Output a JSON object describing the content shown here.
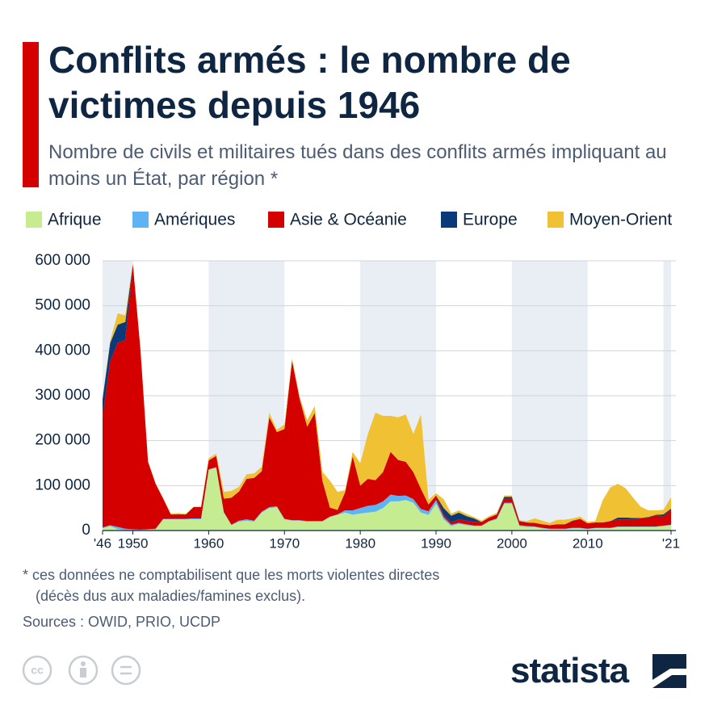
{
  "chart_data": {
    "type": "stacked_area",
    "title": "Conflits armés : le nombre de victimes depuis 1946",
    "subtitle": "Nombre de civils et militaires tués dans des conflits armés impliquant au moins un État, par région *",
    "notes": [
      "* ces données ne comptabilisent que les morts violentes directes",
      "(décès dus aux maladies/famines exclus)."
    ],
    "source": "Sources : OWID, PRIO, UCDP",
    "brand": "statista",
    "x": [
      1946,
      1947,
      1948,
      1949,
      1950,
      1951,
      1952,
      1953,
      1954,
      1955,
      1956,
      1957,
      1958,
      1959,
      1960,
      1961,
      1962,
      1963,
      1964,
      1965,
      1966,
      1967,
      1968,
      1969,
      1970,
      1971,
      1972,
      1973,
      1974,
      1975,
      1976,
      1977,
      1978,
      1979,
      1980,
      1981,
      1982,
      1983,
      1984,
      1985,
      1986,
      1987,
      1988,
      1989,
      1990,
      1991,
      1992,
      1993,
      1994,
      1995,
      1996,
      1997,
      1998,
      1999,
      2000,
      2001,
      2002,
      2003,
      2004,
      2005,
      2006,
      2007,
      2008,
      2009,
      2010,
      2011,
      2012,
      2013,
      2014,
      2015,
      2016,
      2017,
      2018,
      2019,
      2020,
      2021
    ],
    "series": [
      {
        "name": "Afrique",
        "color": "#c5ec91",
        "values": [
          5000,
          10000,
          3000,
          1000,
          1000,
          1000,
          2000,
          3000,
          25000,
          25000,
          25000,
          25000,
          25000,
          25000,
          135000,
          140000,
          40000,
          12000,
          20000,
          22000,
          20000,
          40000,
          50000,
          52000,
          25000,
          22000,
          22000,
          20000,
          20000,
          20000,
          30000,
          35000,
          40000,
          35000,
          38000,
          40000,
          42000,
          50000,
          65000,
          65000,
          68000,
          62000,
          40000,
          35000,
          60000,
          25000,
          10000,
          15000,
          12000,
          10000,
          10000,
          20000,
          25000,
          60000,
          60000,
          10000,
          8000,
          8000,
          5000,
          3000,
          3000,
          3000,
          5000,
          5000,
          3000,
          5000,
          5000,
          5000,
          8000,
          8000,
          8000,
          8000,
          8000,
          8000,
          10000,
          12000
        ]
      },
      {
        "name": "Amériques",
        "color": "#5eb3f2",
        "values": [
          2000,
          2000,
          5000,
          3000,
          2000,
          1000,
          1000,
          1000,
          1000,
          1000,
          1000,
          1000,
          2000,
          2000,
          1000,
          1000,
          1000,
          1000,
          2000,
          3000,
          2000,
          2000,
          2000,
          2000,
          1000,
          1000,
          1000,
          1000,
          1000,
          1000,
          1000,
          1000,
          5000,
          10000,
          12000,
          15000,
          15000,
          15000,
          15000,
          12000,
          10000,
          8000,
          8000,
          8000,
          8000,
          5000,
          3000,
          2000,
          2000,
          1000,
          1000,
          1000,
          2000,
          2000,
          2000,
          2000,
          2000,
          1000,
          1000,
          1000,
          1000,
          1000,
          1000,
          1000,
          1000,
          1000,
          1000,
          1000,
          1000,
          1000,
          1000,
          1000,
          1000,
          1000,
          1000,
          1000
        ]
      },
      {
        "name": "Asie & Océanie",
        "color": "#d40000",
        "values": [
          245000,
          365000,
          410000,
          420000,
          590000,
          400000,
          150000,
          100000,
          45000,
          10000,
          8000,
          10000,
          25000,
          25000,
          20000,
          25000,
          30000,
          60000,
          65000,
          90000,
          95000,
          90000,
          200000,
          165000,
          200000,
          355000,
          270000,
          210000,
          240000,
          90000,
          20000,
          10000,
          40000,
          120000,
          50000,
          60000,
          55000,
          65000,
          95000,
          80000,
          75000,
          60000,
          45000,
          15000,
          10000,
          5000,
          5000,
          8000,
          8000,
          8000,
          8000,
          8000,
          8000,
          8000,
          10000,
          8000,
          8000,
          8000,
          8000,
          8000,
          10000,
          10000,
          15000,
          20000,
          12000,
          12000,
          12000,
          15000,
          15000,
          15000,
          15000,
          18000,
          20000,
          25000,
          20000,
          35000
        ]
      },
      {
        "name": "Europe",
        "color": "#0b3a7a",
        "values": [
          40000,
          40000,
          40000,
          40000,
          0,
          0,
          0,
          0,
          0,
          0,
          2000,
          0,
          0,
          0,
          0,
          0,
          0,
          0,
          0,
          0,
          0,
          0,
          0,
          0,
          0,
          0,
          0,
          0,
          1000,
          0,
          0,
          0,
          0,
          0,
          0,
          0,
          0,
          0,
          0,
          0,
          0,
          0,
          0,
          0,
          0,
          15000,
          15000,
          15000,
          10000,
          8000,
          0,
          0,
          1000,
          5000,
          3000,
          1000,
          0,
          0,
          0,
          0,
          0,
          0,
          1000,
          0,
          0,
          0,
          0,
          0,
          5000,
          5000,
          4000,
          1000,
          1000,
          1000,
          5000,
          1000
        ]
      },
      {
        "name": "Moyen-Orient",
        "color": "#f0c132",
        "values": [
          0,
          5000,
          25000,
          15000,
          2000,
          1000,
          1000,
          1000,
          1000,
          2000,
          3000,
          1000,
          1000,
          1000,
          5000,
          5000,
          15000,
          15000,
          10000,
          10000,
          10000,
          10000,
          10000,
          5000,
          10000,
          5000,
          5000,
          15000,
          15000,
          20000,
          60000,
          40000,
          5000,
          10000,
          50000,
          100000,
          150000,
          125000,
          80000,
          95000,
          105000,
          85000,
          165000,
          10000,
          5000,
          20000,
          5000,
          5000,
          5000,
          3000,
          3000,
          3000,
          3000,
          3000,
          3000,
          2000,
          3000,
          10000,
          8000,
          5000,
          10000,
          10000,
          5000,
          5000,
          3000,
          3000,
          50000,
          75000,
          75000,
          65000,
          45000,
          25000,
          15000,
          10000,
          10000,
          25000
        ]
      }
    ],
    "xlim": [
      1946,
      2021
    ],
    "xticks": [
      {
        "value": 1946,
        "label": "'46"
      },
      1950,
      1960,
      1970,
      1980,
      1990,
      2000,
      2010,
      {
        "value": 2021,
        "label": "'21"
      }
    ],
    "ylim": [
      0,
      600000
    ],
    "yticks": [
      0,
      {
        "value": 100000,
        "label": "100 000"
      },
      {
        "value": 200000,
        "label": "200 000"
      },
      {
        "value": 300000,
        "label": "300 000"
      },
      {
        "value": 400000,
        "label": "400 000"
      },
      {
        "value": 500000,
        "label": "500 000"
      },
      {
        "value": 600000,
        "label": "600 000"
      }
    ],
    "grid": true
  }
}
